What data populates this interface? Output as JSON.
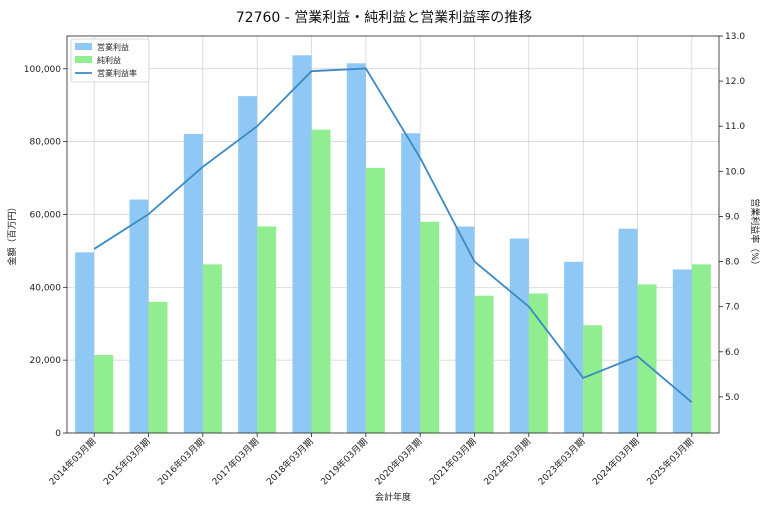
{
  "chart_data": {
    "type": "bar",
    "title": "72760 - 営業利益・純利益と営業利益率の推移",
    "xlabel": "会計年度",
    "ylabel": "金額（百万円）",
    "y2label": "営業利益率（%）",
    "categories": [
      "2014年03月期",
      "2015年03月期",
      "2016年03月期",
      "2017年03月期",
      "2018年03月期",
      "2019年03月期",
      "2020年03月期",
      "2021年03月期",
      "2022年03月期",
      "2023年03月期",
      "2024年03月期",
      "2025年03月期"
    ],
    "ylim": [
      0,
      109000
    ],
    "yticks": [
      0,
      20000,
      40000,
      60000,
      80000,
      100000
    ],
    "ytick_labels": [
      "0",
      "20,000",
      "40,000",
      "60,000",
      "80,000",
      "100,000"
    ],
    "y2lim": [
      4.2,
      13.0
    ],
    "y2ticks": [
      5.0,
      6.0,
      7.0,
      8.0,
      9.0,
      10.0,
      11.0,
      12.0,
      13.0
    ],
    "y2tick_labels": [
      "5.0",
      "6.0",
      "7.0",
      "8.0",
      "9.0",
      "10.0",
      "11.0",
      "12.0",
      "13.0"
    ],
    "grid": true,
    "legend_position": "top-left",
    "series": [
      {
        "name": "営業利益",
        "type": "bar",
        "axis": "left",
        "color": "#90c8f5",
        "values": [
          49600,
          64100,
          82100,
          92500,
          103700,
          101500,
          82300,
          56700,
          53400,
          47000,
          56100,
          44900
        ]
      },
      {
        "name": "純利益",
        "type": "bar",
        "axis": "left",
        "color": "#90ee90",
        "values": [
          21400,
          36000,
          46300,
          56700,
          83300,
          72800,
          58000,
          37700,
          38300,
          29600,
          40800,
          46300
        ]
      },
      {
        "name": "営業利益率",
        "type": "line",
        "axis": "right",
        "color": "#3a8ac4",
        "values": [
          8.28,
          9.05,
          10.1,
          11.0,
          12.22,
          12.28,
          10.3,
          8.0,
          7.0,
          5.42,
          5.9,
          4.88
        ]
      }
    ]
  }
}
